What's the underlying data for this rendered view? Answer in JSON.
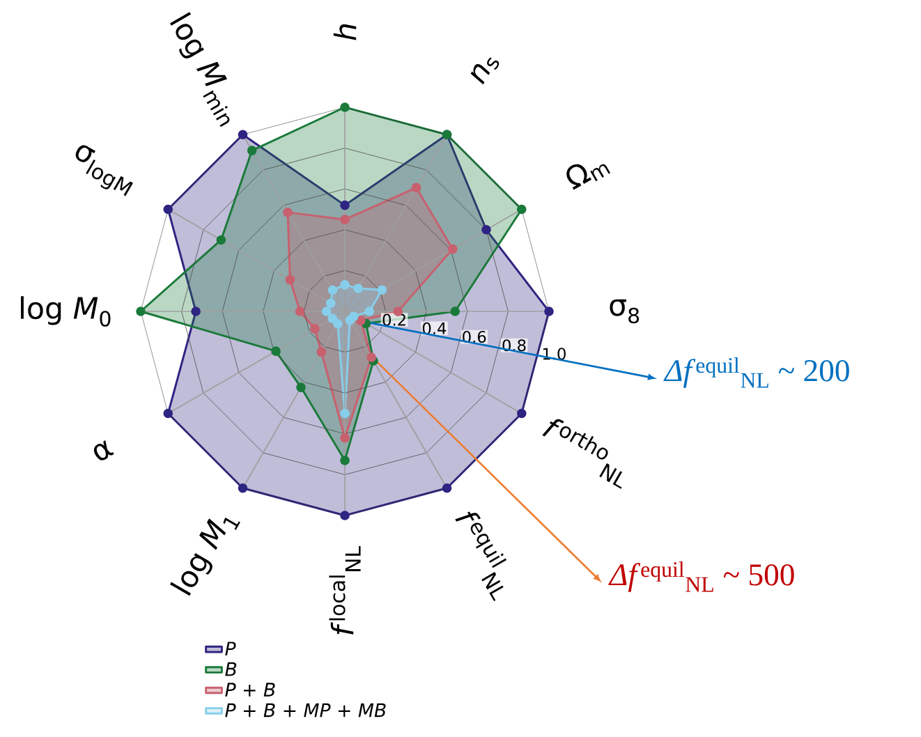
{
  "chart_data": {
    "type": "radar",
    "categories": [
      "*h*",
      "*n*$_{s}$",
      "Ω$_{m}$",
      "σ$_{8}$",
      "*f*$^{ortho}$$_{NL}$",
      "*f*$^{equil}$$_{NL}$",
      "*f*$^{local}$$_{NL}$",
      "log *M*$_{1}$",
      "α",
      "log *M*$_{0}$",
      "σ$_{logM}$",
      "log *M*$_{min}$"
    ],
    "series": [
      {
        "name": "*P*",
        "color": "#2e2482",
        "values": [
          0.52,
          1.0,
          0.8,
          1.0,
          1.0,
          1.0,
          1.0,
          1.0,
          1.0,
          0.73,
          1.0,
          1.0
        ]
      },
      {
        "name": "*B*",
        "color": "#1a7a3a",
        "values": [
          1.0,
          1.0,
          1.0,
          0.54,
          0.12,
          0.28,
          0.73,
          0.43,
          0.39,
          1.0,
          0.7,
          0.91
        ]
      },
      {
        "name": "*P* + *B*",
        "color": "#c8606e",
        "values": [
          0.45,
          0.7,
          0.61,
          0.26,
          0.09,
          0.26,
          0.62,
          0.23,
          0.17,
          0.22,
          0.31,
          0.56
        ]
      },
      {
        "name": "*P* + *B* + *MP* + *MB*",
        "color": "#87ceeb",
        "values": [
          0.13,
          0.13,
          0.21,
          0.12,
          0.05,
          0.05,
          0.5,
          0.07,
          0.07,
          0.09,
          0.08,
          0.12
        ]
      }
    ],
    "ylim": [
      0,
      1
    ],
    "yticks": [
      0.2,
      0.4,
      0.6,
      0.8,
      {
        "value": 1.0,
        "label": "1.0"
      }
    ],
    "grid": true,
    "legend": "bottom",
    "marker": "circle",
    "line_style": "solid",
    "annotations": [
      "*Δf*$^{equil}$$_{NL}$ ~ 200",
      "*Δf*$^{equil}$$_{NL}$ ~ 500"
    ]
  }
}
